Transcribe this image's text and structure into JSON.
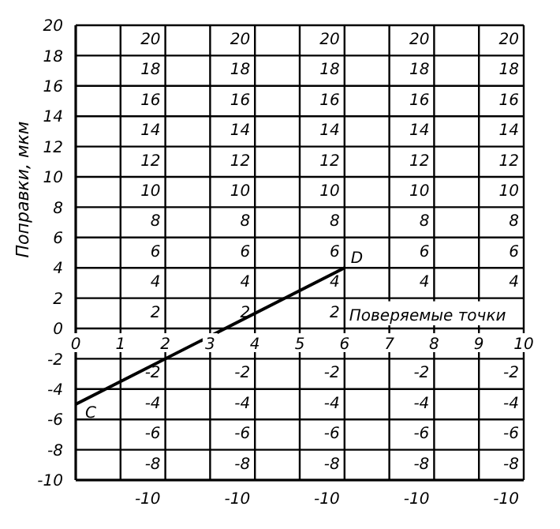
{
  "chart_data": {
    "type": "line",
    "ylabel": "Поправки, мкм",
    "xlabel": "Поверяемые точки",
    "xlim": [
      0,
      10
    ],
    "xticks": [
      0,
      1,
      2,
      3,
      4,
      5,
      6,
      7,
      8,
      9,
      10
    ],
    "ylim": [
      -10,
      20
    ],
    "yticks": [
      -10,
      -8,
      -6,
      -4,
      -2,
      0,
      2,
      4,
      6,
      8,
      10,
      12,
      14,
      16,
      18,
      20
    ],
    "grid": true,
    "marker": "none",
    "line_style": "solid",
    "series": [
      {
        "x": [
          0,
          6
        ],
        "values": [
          -5,
          4
        ],
        "color": "#000000"
      }
    ],
    "annotations": [
      {
        "text": "C",
        "x": 0,
        "y": -5
      },
      {
        "text": "D",
        "x": 6,
        "y": 4
      },
      "20",
      "18",
      "16",
      "14",
      "12",
      "10",
      "8",
      "6",
      "4",
      "2",
      "-2",
      "-4",
      "-6",
      "-8",
      "-10",
      "20",
      "18",
      "16",
      "14",
      "12",
      "10",
      "8",
      "6",
      "4",
      "2",
      "-2",
      "-4",
      "-6",
      "-8",
      "-10",
      "20",
      "18",
      "16",
      "14",
      "12",
      "10",
      "8",
      "6",
      "4",
      "2",
      "-2",
      "-4",
      "-6",
      "-8",
      "-10",
      "20",
      "18",
      "16",
      "14",
      "12",
      "10",
      "8",
      "6",
      "4",
      "-2",
      "-4",
      "-6",
      "-8",
      "-10",
      "20",
      "18",
      "16",
      "14",
      "12",
      "10",
      "8",
      "6",
      "4",
      "-2",
      "-4",
      "-6",
      "-8",
      "-10"
    ]
  }
}
